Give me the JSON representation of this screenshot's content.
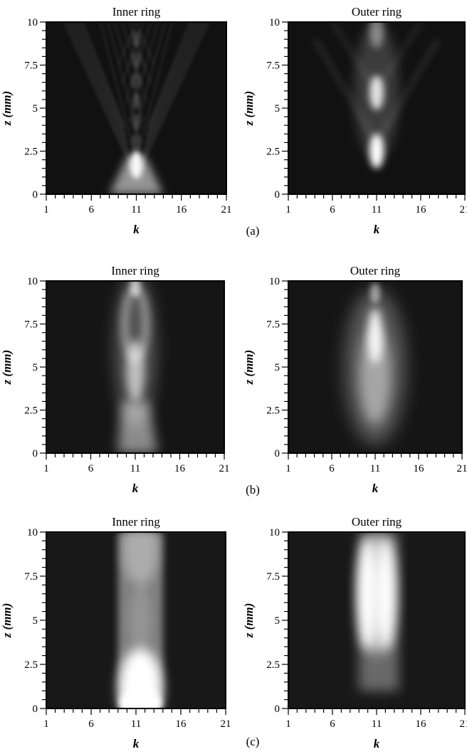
{
  "figure": {
    "panel_labels": [
      "(a)",
      "(b)",
      "(c)"
    ]
  },
  "chart_data": [
    {
      "type": "heatmap",
      "row": "a",
      "title": "Inner ring",
      "xlabel": "k",
      "ylabel": "z (mm)",
      "xlim": [
        1,
        21
      ],
      "ylim": [
        0,
        10
      ],
      "x_ticks": [
        "1",
        "6",
        "11",
        "16",
        "21"
      ],
      "y_ticks": [
        "0",
        "2.5",
        "5",
        "7.5",
        "10"
      ],
      "colormap": "grayscale",
      "background": "#111111",
      "pattern": "cone",
      "features": [
        {
          "kind": "peak",
          "k": 11,
          "z": 1.7,
          "intensity": 0.95
        },
        {
          "kind": "criss-cross fringes",
          "k_range": [
            3,
            19
          ],
          "z_range": [
            2,
            10
          ]
        }
      ]
    },
    {
      "type": "heatmap",
      "row": "a",
      "title": "Outer ring",
      "xlabel": "k",
      "ylabel": "z (mm)",
      "xlim": [
        1,
        21
      ],
      "ylim": [
        0,
        10
      ],
      "x_ticks": [
        "1",
        "6",
        "11",
        "16",
        "21"
      ],
      "y_ticks": [
        "0",
        "2.5",
        "5",
        "7.5",
        "10"
      ],
      "colormap": "grayscale",
      "background": "#111111",
      "pattern": "peaks",
      "features": [
        {
          "kind": "peak",
          "k": 11,
          "z": 2.5,
          "intensity": 1.0
        },
        {
          "kind": "peak",
          "k": 11,
          "z": 5.9,
          "intensity": 0.85
        },
        {
          "kind": "peak",
          "k": 11,
          "z": 9.5,
          "intensity": 0.4
        }
      ]
    },
    {
      "type": "heatmap",
      "row": "b",
      "title": "Inner ring",
      "xlabel": "k",
      "ylabel": "z (mm)",
      "xlim": [
        1,
        21
      ],
      "ylim": [
        0,
        10
      ],
      "x_ticks": [
        "1",
        "6",
        "11",
        "16",
        "21"
      ],
      "y_ticks": [
        "0",
        "2.5",
        "5",
        "7.5",
        "10"
      ],
      "colormap": "grayscale",
      "background": "#151515",
      "pattern": "band",
      "features": [
        {
          "kind": "bright band",
          "k_range": [
            9,
            13.5
          ],
          "z_range": [
            0,
            2
          ],
          "intensity": 0.6
        },
        {
          "kind": "peak",
          "k": 11,
          "z": 4.8,
          "intensity": 0.8
        },
        {
          "kind": "oval ring",
          "k": 11,
          "z": 7.5,
          "intensity": 0.65
        }
      ]
    },
    {
      "type": "heatmap",
      "row": "b",
      "title": "Outer ring",
      "xlabel": "k",
      "ylabel": "z (mm)",
      "xlim": [
        1,
        21
      ],
      "ylim": [
        0,
        10
      ],
      "x_ticks": [
        "1",
        "6",
        "11",
        "16",
        "21"
      ],
      "y_ticks": [
        "0",
        "2.5",
        "5",
        "7.5",
        "10"
      ],
      "colormap": "grayscale",
      "background": "#151515",
      "pattern": "plume",
      "features": [
        {
          "kind": "peak",
          "k": 11,
          "z": 6.8,
          "intensity": 0.95
        },
        {
          "kind": "plume",
          "k_range": [
            8,
            14
          ],
          "z_range": [
            1,
            10
          ],
          "intensity": 0.5
        }
      ]
    },
    {
      "type": "heatmap",
      "row": "c",
      "title": "Inner ring",
      "xlabel": "k",
      "ylabel": "z (mm)",
      "xlim": [
        1,
        21
      ],
      "ylim": [
        0,
        10
      ],
      "x_ticks": [
        "1",
        "6",
        "11",
        "16",
        "21"
      ],
      "y_ticks": [
        "0",
        "2.5",
        "5",
        "7.5",
        "10"
      ],
      "colormap": "grayscale",
      "background": "#181818",
      "pattern": "column",
      "features": [
        {
          "kind": "bright column",
          "k_range": [
            9,
            14
          ],
          "z_range": [
            0,
            10
          ]
        },
        {
          "kind": "peak",
          "k": 11,
          "z": 0.5,
          "intensity": 1.0
        },
        {
          "kind": "waist",
          "k": 11,
          "z": 5,
          "intensity": 0.35
        }
      ]
    },
    {
      "type": "heatmap",
      "row": "c",
      "title": "Outer ring",
      "xlabel": "k",
      "ylabel": "z (mm)",
      "xlim": [
        1,
        21
      ],
      "ylim": [
        0,
        10
      ],
      "x_ticks": [
        "1",
        "6",
        "11",
        "16",
        "21"
      ],
      "y_ticks": [
        "0",
        "2.5",
        "5",
        "7.5",
        "10"
      ],
      "colormap": "grayscale",
      "background": "#181818",
      "pattern": "twin",
      "features": [
        {
          "kind": "peak",
          "k": 10,
          "z": 6.5,
          "intensity": 1.0
        },
        {
          "kind": "peak",
          "k": 12,
          "z": 6.5,
          "intensity": 1.0
        },
        {
          "kind": "bright column",
          "k_range": [
            9,
            13.5
          ],
          "z_range": [
            1,
            10
          ]
        }
      ]
    }
  ]
}
